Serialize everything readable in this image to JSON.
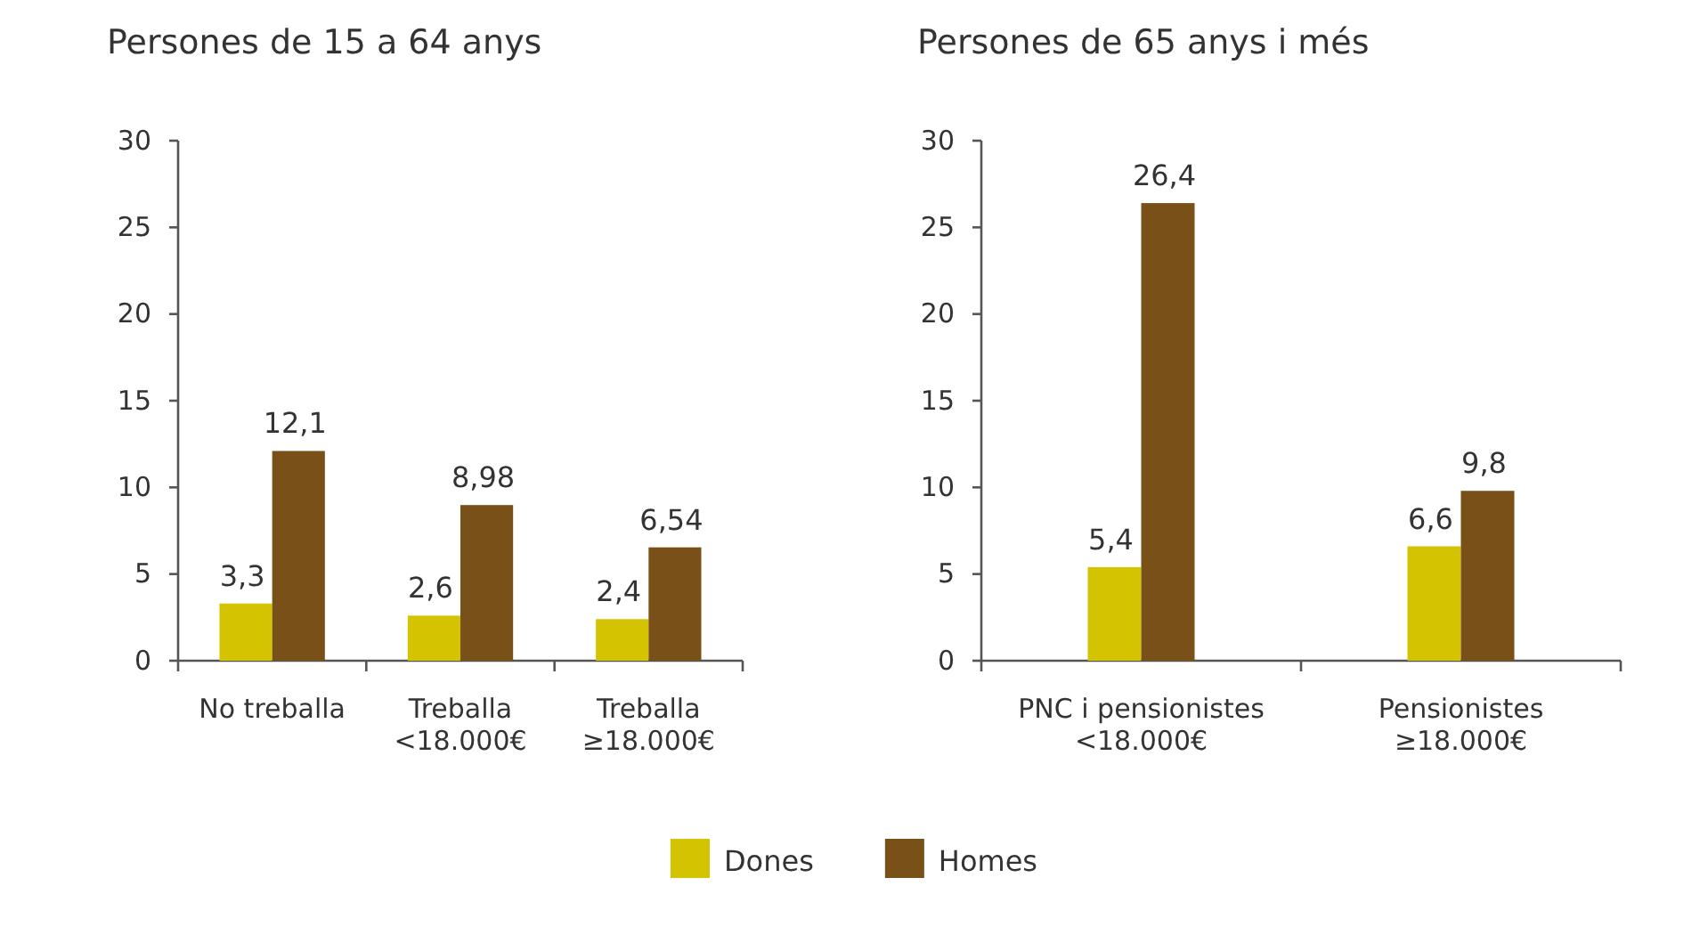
{
  "chart_data": [
    {
      "type": "bar",
      "title": "Persones de 15 a 64 anys",
      "categories": [
        "No treballa",
        "Treballa\n<18.000€",
        "Treballa\n≥18.000€"
      ],
      "series": [
        {
          "name": "Dones",
          "color": "#d4c300",
          "values": [
            3.3,
            2.6,
            2.4
          ],
          "value_labels": [
            "3,3",
            "2,6",
            "2,4"
          ]
        },
        {
          "name": "Homes",
          "color": "#7a5019",
          "values": [
            12.1,
            8.98,
            6.54
          ],
          "value_labels": [
            "12,1",
            "8,98",
            "6,54"
          ]
        }
      ],
      "ylim": [
        0,
        30
      ],
      "yticks": [
        0,
        5,
        10,
        15,
        20,
        25,
        30
      ],
      "legend": "bottom"
    },
    {
      "type": "bar",
      "title": "Persones de 65 anys i més",
      "categories": [
        "PNC i pensionistes\n<18.000€",
        "Pensionistes\n≥18.000€"
      ],
      "series": [
        {
          "name": "Dones",
          "color": "#d4c300",
          "values": [
            5.4,
            6.6
          ],
          "value_labels": [
            "5,4",
            "6,6"
          ]
        },
        {
          "name": "Homes",
          "color": "#7a5019",
          "values": [
            26.4,
            9.8
          ],
          "value_labels": [
            "26,4",
            "9,8"
          ]
        }
      ],
      "ylim": [
        0,
        30
      ],
      "yticks": [
        0,
        5,
        10,
        15,
        20,
        25,
        30
      ],
      "legend": "bottom"
    }
  ]
}
